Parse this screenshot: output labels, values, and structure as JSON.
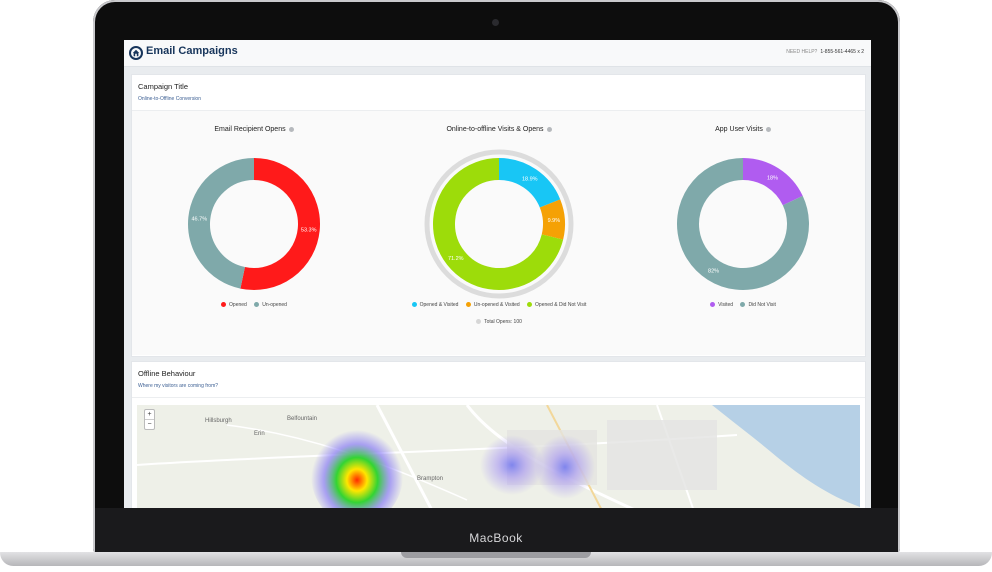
{
  "device": {
    "brand": "MacBook"
  },
  "header": {
    "title": "Email Campaigns",
    "help_label": "NEED HELP?",
    "help_phone": "1-855-561-4465 x 2"
  },
  "campaign": {
    "title": "Campaign Title",
    "subtitle": "Online-to-Offline Conversion"
  },
  "colors": {
    "opened": "#ff1a1a",
    "unopened": "#7fa9aa",
    "opened_visited": "#18c6f5",
    "unopened_visited": "#f5a105",
    "opened_not_visit": "#9ddc0a",
    "visited": "#b05cf0",
    "did_not_visit": "#7fa9aa"
  },
  "chart_data": [
    {
      "type": "pie",
      "title": "Email Recipient Opens",
      "categories": [
        "Opened",
        "Un-opened"
      ],
      "values": [
        53.3,
        46.7
      ],
      "value_labels": [
        "53.3%",
        "46.7%"
      ],
      "legend": "bottom"
    },
    {
      "type": "pie",
      "title": "Online-to-offline Visits & Opens",
      "categories": [
        "Opened & Visited",
        "Un-opened & Visited",
        "Opened & Did Not Visit"
      ],
      "values": [
        18.9,
        9.9,
        71.2
      ],
      "value_labels": [
        "18.9%",
        "9.9%",
        "71.2%"
      ],
      "total_label": "Total Opens: 100",
      "legend": "bottom"
    },
    {
      "type": "pie",
      "title": "App User Visits",
      "categories": [
        "Visited",
        "Did Not Visit"
      ],
      "values": [
        18,
        82
      ],
      "value_labels": [
        "18%",
        "82%"
      ],
      "legend": "bottom"
    }
  ],
  "offline": {
    "title": "Offline Behaviour",
    "subtitle": "Where my visitors are coming from?",
    "zoom_in": "+",
    "zoom_out": "−",
    "labels": {
      "hillsburgh": "Hillsburgh",
      "belfountain": "Belfountain",
      "erin": "Erin",
      "brampton": "Brampton"
    }
  }
}
